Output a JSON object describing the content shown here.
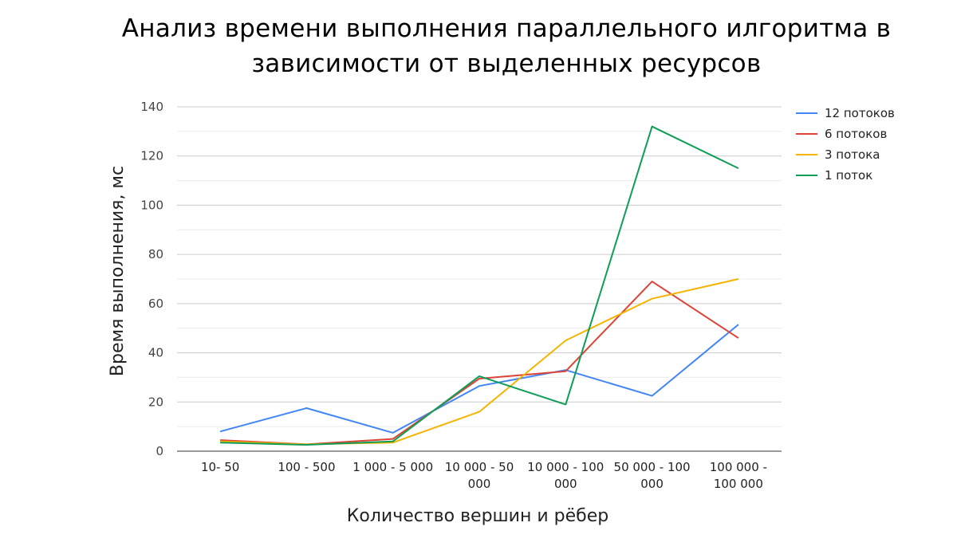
{
  "chart_data": {
    "type": "line",
    "title": "Анализ времени выполнения параллельного илгоритма в зависимости от выделенных ресурсов",
    "xlabel": "Количество вершин и рёбер",
    "ylabel": "Время выполнения, мс",
    "ylim": [
      0,
      140
    ],
    "yticks": [
      0,
      20,
      40,
      60,
      80,
      100,
      120,
      140
    ],
    "grid": true,
    "legend_position": "right",
    "categories": [
      [
        "10- 50"
      ],
      [
        "100 - 500"
      ],
      [
        "1 000 - 5 000"
      ],
      [
        "10 000 - 50",
        "000"
      ],
      [
        "10 000 - 100",
        "000"
      ],
      [
        "50 000 - 100",
        "000"
      ],
      [
        "100 000 -",
        "100 000"
      ]
    ],
    "series": [
      {
        "name": "12 потоков",
        "color": "#4285f4",
        "values": [
          8,
          17.5,
          7.5,
          26.5,
          33,
          22.5,
          51.5
        ]
      },
      {
        "name": "6 потоков",
        "color": "#db4437",
        "values": [
          4.5,
          2.8,
          5,
          29.5,
          32.5,
          69,
          46
        ]
      },
      {
        "name": "3 потока",
        "color": "#f4b400",
        "values": [
          4,
          2.8,
          3.5,
          16,
          45,
          62,
          70
        ]
      },
      {
        "name": "1 поток",
        "color": "#0f9d58",
        "values": [
          3.5,
          2.6,
          4,
          30.5,
          19,
          132,
          115
        ]
      }
    ]
  }
}
